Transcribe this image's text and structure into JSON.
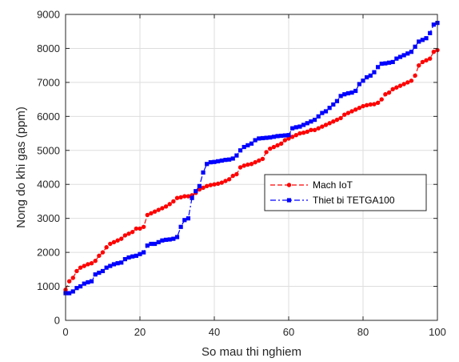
{
  "chart_data": {
    "type": "line",
    "title": "",
    "xlabel": "So mau thi nghiem",
    "ylabel": "Nong do khi gas (ppm)",
    "xlim": [
      0,
      100
    ],
    "ylim": [
      0,
      9000
    ],
    "xticks": [
      "0",
      "20",
      "40",
      "60",
      "80",
      "100"
    ],
    "yticks": [
      "0",
      "1000",
      "2000",
      "3000",
      "4000",
      "5000",
      "6000",
      "7000",
      "8000",
      "9000"
    ],
    "grid": true,
    "legend_position": "right-center",
    "x": [
      0,
      1,
      2,
      3,
      4,
      5,
      6,
      7,
      8,
      9,
      10,
      11,
      12,
      13,
      14,
      15,
      16,
      17,
      18,
      19,
      20,
      21,
      22,
      23,
      24,
      25,
      26,
      27,
      28,
      29,
      30,
      31,
      32,
      33,
      34,
      35,
      36,
      37,
      38,
      39,
      40,
      41,
      42,
      43,
      44,
      45,
      46,
      47,
      48,
      49,
      50,
      51,
      52,
      53,
      54,
      55,
      56,
      57,
      58,
      59,
      60,
      61,
      62,
      63,
      64,
      65,
      66,
      67,
      68,
      69,
      70,
      71,
      72,
      73,
      74,
      75,
      76,
      77,
      78,
      79,
      80,
      81,
      82,
      83,
      84,
      85,
      86,
      87,
      88,
      89,
      90,
      91,
      92,
      93,
      94,
      95,
      96,
      97,
      98,
      99,
      100
    ],
    "series": [
      {
        "name": "Mach IoT",
        "color": "#ff0000",
        "line_style": "dashed",
        "marker": "circle",
        "values": [
          900,
          1150,
          1250,
          1450,
          1550,
          1600,
          1650,
          1680,
          1750,
          1900,
          2000,
          2150,
          2250,
          2300,
          2350,
          2400,
          2500,
          2550,
          2600,
          2700,
          2700,
          2750,
          3100,
          3150,
          3200,
          3250,
          3300,
          3350,
          3420,
          3500,
          3600,
          3620,
          3650,
          3650,
          3680,
          3750,
          3850,
          3900,
          3950,
          3980,
          4000,
          4020,
          4050,
          4100,
          4150,
          4250,
          4300,
          4500,
          4550,
          4580,
          4600,
          4650,
          4700,
          4750,
          4950,
          5050,
          5100,
          5150,
          5200,
          5300,
          5350,
          5400,
          5450,
          5500,
          5520,
          5550,
          5600,
          5600,
          5650,
          5700,
          5750,
          5800,
          5850,
          5900,
          5950,
          6050,
          6100,
          6150,
          6200,
          6250,
          6300,
          6330,
          6350,
          6360,
          6400,
          6500,
          6650,
          6700,
          6800,
          6850,
          6900,
          6950,
          7000,
          7050,
          7200,
          7500,
          7600,
          7650,
          7700,
          7900,
          7950
        ]
      },
      {
        "name": "Thiet bi TETGA100",
        "color": "#0000ff",
        "line_style": "dash-dot",
        "marker": "square",
        "values": [
          800,
          800,
          850,
          950,
          1000,
          1080,
          1120,
          1150,
          1350,
          1400,
          1450,
          1550,
          1600,
          1650,
          1680,
          1700,
          1800,
          1850,
          1880,
          1900,
          1950,
          2000,
          2200,
          2250,
          2250,
          2300,
          2350,
          2370,
          2380,
          2400,
          2450,
          2750,
          2950,
          3000,
          3600,
          3800,
          3950,
          4350,
          4600,
          4650,
          4660,
          4680,
          4700,
          4720,
          4730,
          4760,
          4850,
          5000,
          5100,
          5150,
          5200,
          5300,
          5350,
          5360,
          5370,
          5380,
          5400,
          5420,
          5430,
          5440,
          5450,
          5650,
          5680,
          5700,
          5750,
          5800,
          5850,
          5900,
          6000,
          6100,
          6150,
          6250,
          6350,
          6450,
          6600,
          6650,
          6680,
          6700,
          6750,
          6950,
          7050,
          7150,
          7200,
          7300,
          7450,
          7550,
          7560,
          7580,
          7600,
          7700,
          7750,
          7800,
          7850,
          7900,
          8050,
          8200,
          8250,
          8300,
          8450,
          8700,
          8750
        ]
      }
    ]
  }
}
